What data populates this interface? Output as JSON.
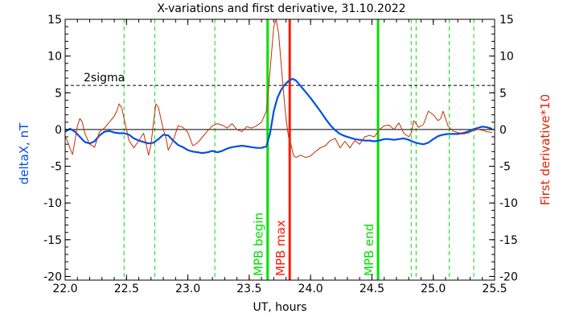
{
  "chart_data": {
    "type": "line",
    "title": "X-variations and first derivative, 31.10.2022",
    "xlabel": "UT, hours",
    "ylabel_left": "deltaX, nT",
    "ylabel_right": "First derivative*10",
    "xlim": [
      22.0,
      25.5
    ],
    "ylim": [
      -20.5,
      15
    ],
    "x_ticks": [
      22.0,
      22.5,
      23.0,
      23.5,
      24.0,
      24.5,
      25.0,
      25.5
    ],
    "x_tick_labels": [
      "22.0",
      "22.5",
      "23.0",
      "23.5",
      "24.0",
      "24.5",
      "25.0",
      "25.5"
    ],
    "y_ticks": [
      15,
      10,
      5,
      0,
      -5,
      -10,
      -15,
      -20
    ],
    "y_tick_labels": [
      "15",
      "10",
      "5",
      "0",
      "-5",
      "-10",
      "-15",
      "-20"
    ],
    "grid": false,
    "threshold": {
      "label": "2sigma",
      "value": 6.0,
      "color": "#000000"
    },
    "events": [
      {
        "label": "MPB begin",
        "x": 23.65,
        "color": "#00e000"
      },
      {
        "label": "MPB max",
        "x": 23.83,
        "color": "#ff1a00"
      },
      {
        "label": "MPB end",
        "x": 24.55,
        "color": "#00e000"
      }
    ],
    "markers": {
      "color": "#00e000",
      "x": [
        22.48,
        22.73,
        23.22,
        24.82,
        24.86,
        25.13,
        25.33
      ]
    },
    "series": [
      {
        "axis": "left",
        "color": "#0050e0",
        "x": [
          22.0,
          22.04,
          22.08,
          22.12,
          22.16,
          22.2,
          22.24,
          22.28,
          22.32,
          22.36,
          22.4,
          22.44,
          22.48,
          22.52,
          22.56,
          22.6,
          22.64,
          22.68,
          22.72,
          22.76,
          22.8,
          22.84,
          22.88,
          22.92,
          22.96,
          23.0,
          23.04,
          23.08,
          23.12,
          23.16,
          23.2,
          23.24,
          23.28,
          23.32,
          23.36,
          23.4,
          23.44,
          23.48,
          23.52,
          23.56,
          23.6,
          23.64,
          23.67,
          23.7,
          23.73,
          23.76,
          23.79,
          23.82,
          23.85,
          23.88,
          23.91,
          23.94,
          23.97,
          24.0,
          24.04,
          24.08,
          24.12,
          24.16,
          24.2,
          24.24,
          24.28,
          24.32,
          24.36,
          24.4,
          24.44,
          24.48,
          24.52,
          24.56,
          24.6,
          24.64,
          24.68,
          24.72,
          24.76,
          24.8,
          24.84,
          24.88,
          24.92,
          24.96,
          25.0,
          25.04,
          25.08,
          25.12,
          25.16,
          25.2,
          25.24,
          25.28,
          25.32,
          25.36,
          25.4,
          25.44,
          25.48
        ],
        "values": [
          -0.3,
          0.1,
          -0.3,
          -1.0,
          -1.7,
          -1.9,
          -1.6,
          -0.8,
          -0.3,
          -0.2,
          -0.4,
          -0.5,
          -0.5,
          -0.7,
          -1.2,
          -1.5,
          -1.7,
          -1.9,
          -1.8,
          -1.3,
          -0.7,
          -0.8,
          -1.5,
          -2.1,
          -2.4,
          -2.8,
          -3.0,
          -3.1,
          -3.2,
          -3.1,
          -2.9,
          -3.1,
          -2.9,
          -2.6,
          -2.4,
          -2.3,
          -2.2,
          -2.3,
          -2.4,
          -2.5,
          -2.5,
          -2.3,
          -0.5,
          2.5,
          4.3,
          5.4,
          6.1,
          6.6,
          6.9,
          6.7,
          6.1,
          5.5,
          4.9,
          4.3,
          3.4,
          2.5,
          1.5,
          0.6,
          -0.1,
          -0.6,
          -0.9,
          -1.1,
          -1.3,
          -1.4,
          -1.5,
          -1.5,
          -1.6,
          -1.5,
          -1.3,
          -1.3,
          -1.4,
          -1.3,
          -1.2,
          -1.4,
          -1.7,
          -1.9,
          -2.0,
          -1.8,
          -1.3,
          -0.9,
          -0.7,
          -0.6,
          -0.6,
          -0.6,
          -0.5,
          -0.3,
          0.0,
          0.2,
          0.4,
          0.3,
          0.1
        ]
      },
      {
        "axis": "right",
        "color": "#c03000",
        "x": [
          22.0,
          22.02,
          22.04,
          22.06,
          22.08,
          22.1,
          22.12,
          22.14,
          22.16,
          22.2,
          22.24,
          22.28,
          22.32,
          22.36,
          22.4,
          22.42,
          22.44,
          22.46,
          22.48,
          22.5,
          22.52,
          22.56,
          22.6,
          22.64,
          22.68,
          22.7,
          22.72,
          22.74,
          22.76,
          22.78,
          22.8,
          22.82,
          22.84,
          22.88,
          22.92,
          22.96,
          23.0,
          23.04,
          23.08,
          23.12,
          23.16,
          23.2,
          23.24,
          23.28,
          23.32,
          23.36,
          23.4,
          23.44,
          23.48,
          23.52,
          23.56,
          23.6,
          23.64,
          23.66,
          23.68,
          23.7,
          23.72,
          23.74,
          23.76,
          23.78,
          23.8,
          23.82,
          23.84,
          23.86,
          23.88,
          23.92,
          23.96,
          24.0,
          24.04,
          24.08,
          24.12,
          24.16,
          24.2,
          24.24,
          24.28,
          24.32,
          24.36,
          24.4,
          24.44,
          24.48,
          24.52,
          24.56,
          24.6,
          24.64,
          24.68,
          24.72,
          24.76,
          24.8,
          24.82,
          24.84,
          24.86,
          24.88,
          24.92,
          24.96,
          25.0,
          25.04,
          25.06,
          25.08,
          25.12,
          25.16,
          25.2,
          25.24,
          25.28,
          25.32,
          25.36,
          25.4,
          25.44,
          25.48
        ],
        "values": [
          -1.0,
          -1.6,
          -2.6,
          -3.4,
          -1.5,
          0.5,
          1.5,
          1.0,
          -0.5,
          -2.0,
          -2.4,
          -0.3,
          0.2,
          1.0,
          1.8,
          2.5,
          3.5,
          3.0,
          1.5,
          0.0,
          -1.5,
          -2.5,
          -1.5,
          -0.5,
          -3.5,
          -2.0,
          1.0,
          3.5,
          3.0,
          1.5,
          0.0,
          -1.0,
          -2.8,
          -1.5,
          0.5,
          0.3,
          -0.4,
          -2.2,
          -1.8,
          -1.0,
          -0.2,
          0.5,
          0.8,
          0.6,
          0.2,
          0.8,
          0.0,
          -0.3,
          0.4,
          0.2,
          0.5,
          1.0,
          2.5,
          6.0,
          10.0,
          14.0,
          15.0,
          13.0,
          9.0,
          5.0,
          1.5,
          -1.0,
          -2.0,
          -3.5,
          -3.8,
          -3.5,
          -3.8,
          -3.6,
          -3.0,
          -2.5,
          -2.2,
          -1.5,
          -1.2,
          -2.5,
          -1.6,
          -2.5,
          -1.5,
          -2.0,
          -1.0,
          -0.8,
          -1.0,
          0.0,
          0.5,
          0.6,
          0.0,
          0.9,
          -0.5,
          -1.0,
          -0.5,
          1.2,
          0.8,
          0.3,
          0.7,
          2.5,
          2.0,
          1.2,
          1.5,
          2.5,
          0.5,
          -0.2,
          -0.4,
          -0.6,
          -0.5,
          -0.2,
          0.0,
          -0.1,
          -0.3,
          -0.4
        ]
      }
    ]
  }
}
